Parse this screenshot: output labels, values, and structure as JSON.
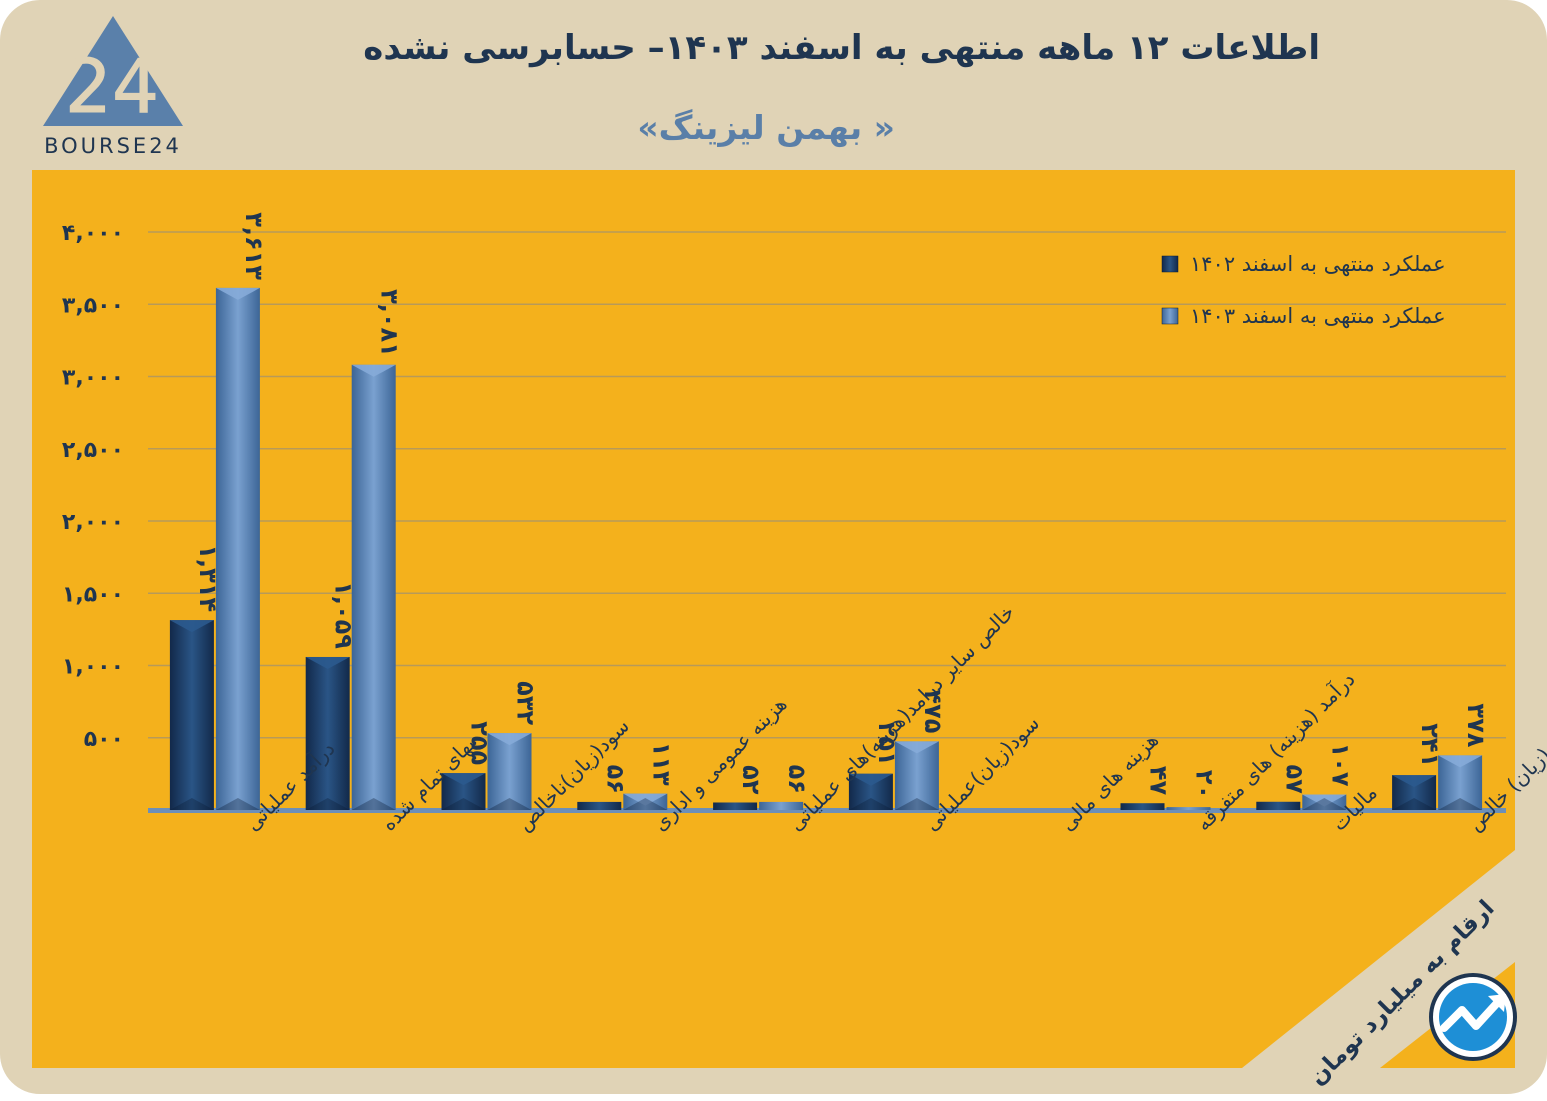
{
  "header": {
    "title": "اطلاعات ۱۲ ماهه منتهی به اسفند ۱۴۰۳– حسابرسی نشده",
    "subtitle": "« بهمن لیزینگ»",
    "logo_text": "BOURSE24",
    "logo_numeral": "24",
    "unit_note": "ارقام به میلیارد تومان"
  },
  "colors": {
    "page_background": "#e0d3b6",
    "plot_panel": "#f4b11c",
    "series_1402": "#1f4470",
    "series_1403": "#5b84b8",
    "text_dark": "#1f3550",
    "subtitle": "#5a7fa8"
  },
  "chart_data": {
    "type": "bar",
    "title": "اطلاعات ۱۲ ماهه منتهی به اسفند ۱۴۰۳– حسابرسی نشده",
    "subtitle": "« بهمن لیزینگ»",
    "categories": [
      "درآمد عملیاتی",
      "بهای تمام شده",
      "سود(زیان)ناخالص",
      "هزینه عمومی و اداری",
      "خالص سایر درامد(هزینه)های عملیاتی",
      "سود(زیان)عملیاتی",
      "هزینه های مالی",
      "درآمد (هزینه) های متفرقه",
      "مالیات",
      "سود(زیان) خالص"
    ],
    "series": [
      {
        "name": "عملکرد منتهی به اسفند ۱۴۰۲",
        "values": [
          1314,
          1059,
          255,
          56,
          52,
          251,
          0,
          47,
          57,
          241
        ],
        "labels": [
          "۱,۳۱۴",
          "۱,۰۵۹",
          "۲۵۵",
          "۵۶",
          "۵۲",
          "۲۵۱",
          "",
          "۴۷",
          "۵۷",
          "۲۴۱"
        ]
      },
      {
        "name": "عملکرد منتهی به اسفند ۱۴۰۳",
        "values": [
          3613,
          3081,
          532,
          113,
          56,
          475,
          0,
          20,
          107,
          378
        ],
        "labels": [
          "۳,۶۱۳",
          "۳,۰۸۱",
          "۵۳۲",
          "۱۱۳",
          "۵۶",
          "۴۷۵",
          "",
          "۲۰",
          "۱۰۷",
          "۳۷۸"
        ]
      }
    ],
    "yticks": [
      500,
      1000,
      1500,
      2000,
      2500,
      3000,
      3500,
      4000
    ],
    "ytick_labels": [
      "۵۰۰",
      "۱,۰۰۰",
      "۱,۵۰۰",
      "۲,۰۰۰",
      "۲,۵۰۰",
      "۳,۰۰۰",
      "۳,۵۰۰",
      "۴,۰۰۰"
    ],
    "ylim": [
      0,
      4000
    ],
    "grid": true,
    "legend_position": "top-right"
  }
}
